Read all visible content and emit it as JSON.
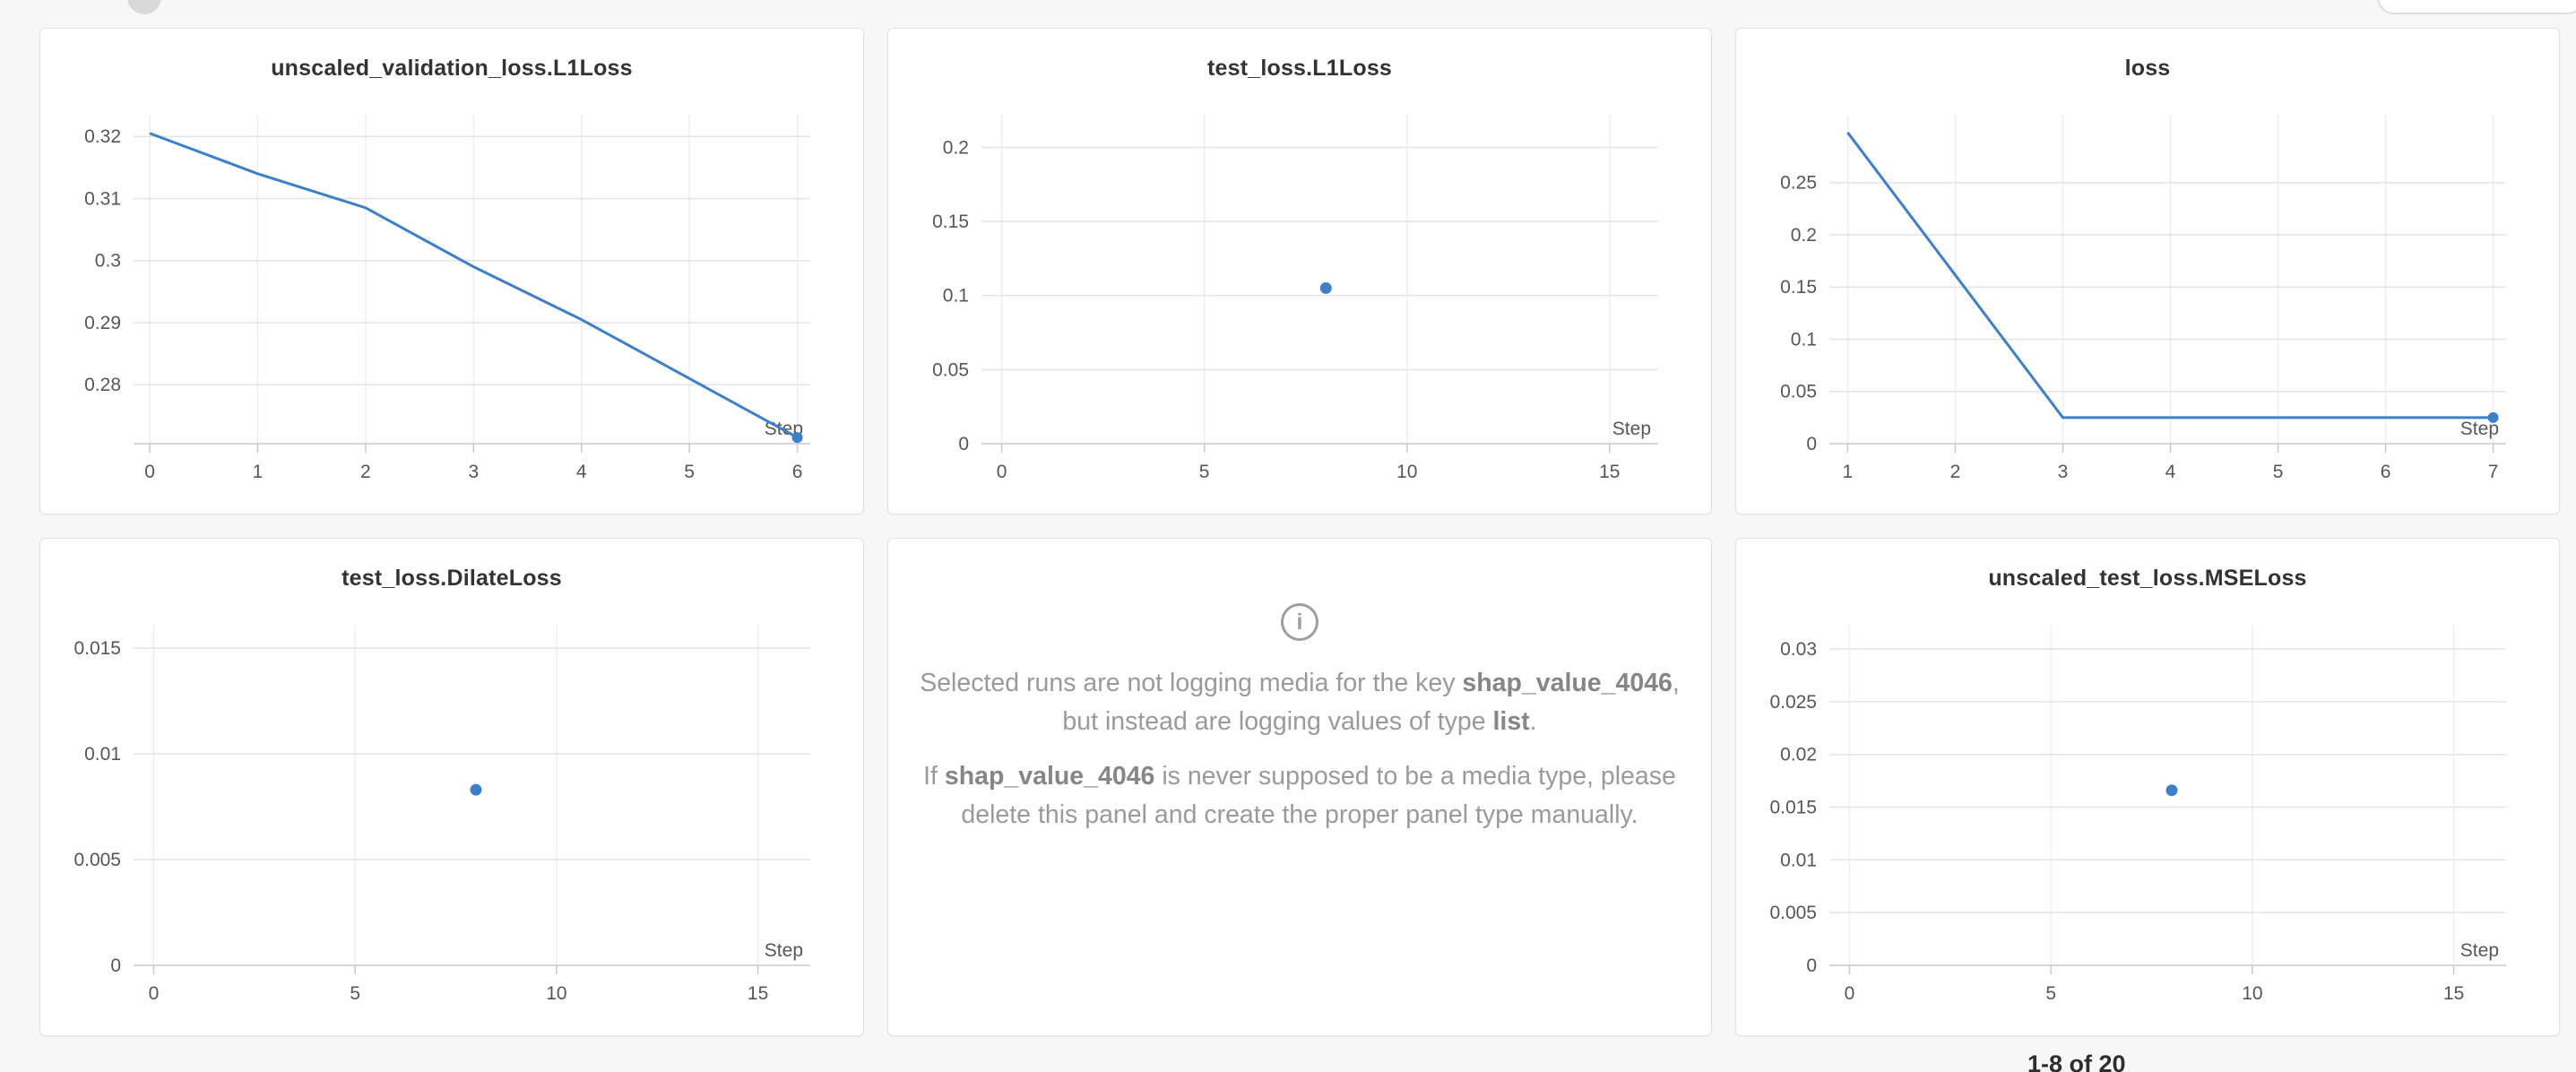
{
  "theme": {
    "accent": "#3e7fca",
    "page_bg": "#f7f7f7",
    "panel_bg": "#ffffff",
    "panel_border": "#e3e3e3",
    "grid_h": "#e4e4e4",
    "grid_v": "#efefef",
    "axis": "#c9c9c9",
    "tick": "#565656",
    "title": "#333333"
  },
  "pagination": {
    "label": "1-8 of 20"
  },
  "info_panel": {
    "icon_glyph": "i",
    "paragraphs": [
      [
        {
          "t": "Selected runs are not logging media for the key ",
          "b": false
        },
        {
          "t": "shap_value_4046",
          "b": true
        },
        {
          "t": ", but instead are logging values of type ",
          "b": false
        },
        {
          "t": "list",
          "b": true
        },
        {
          "t": ".",
          "b": false
        }
      ],
      [
        {
          "t": "If ",
          "b": false
        },
        {
          "t": "shap_value_4046",
          "b": true
        },
        {
          "t": " is never supposed to be a media type, please delete this panel and create the proper panel type manually.",
          "b": false
        }
      ]
    ]
  },
  "chart_data": [
    {
      "type": "line",
      "title": "unscaled_validation_loss.L1Loss",
      "xlabel": "Step",
      "x": [
        0,
        1,
        2,
        3,
        4,
        5,
        6
      ],
      "y": [
        0.3205,
        0.314,
        0.3085,
        0.299,
        0.2905,
        0.281,
        0.2715
      ],
      "xticks": [
        0,
        1,
        2,
        3,
        4,
        5,
        6
      ],
      "yticks": [
        0.28,
        0.29,
        0.3,
        0.31,
        0.32
      ],
      "xlim": [
        -0.15,
        6.12
      ],
      "ylim": [
        0.2705,
        0.3235
      ],
      "end_dot": true
    },
    {
      "type": "scatter",
      "title": "test_loss.L1Loss",
      "xlabel": "Step",
      "x": [
        8
      ],
      "y": [
        0.105
      ],
      "xticks": [
        0,
        5,
        10,
        15
      ],
      "yticks": [
        0,
        0.05,
        0.1,
        0.15,
        0.2
      ],
      "xlim": [
        -0.5,
        16.2
      ],
      "ylim": [
        0,
        0.222
      ],
      "end_dot": false
    },
    {
      "type": "line",
      "title": "loss",
      "xlabel": "Step",
      "x": [
        1,
        2,
        3,
        4,
        5,
        6,
        7
      ],
      "y": [
        0.298,
        0.1615,
        0.025,
        0.025,
        0.025,
        0.025,
        0.025
      ],
      "xticks": [
        1,
        2,
        3,
        4,
        5,
        6,
        7
      ],
      "yticks": [
        0,
        0.05,
        0.1,
        0.15,
        0.2,
        0.25
      ],
      "xlim": [
        0.83,
        7.12
      ],
      "ylim": [
        0,
        0.315
      ],
      "end_dot": true
    },
    {
      "type": "scatter",
      "title": "test_loss.DilateLoss",
      "xlabel": "Step",
      "x": [
        8
      ],
      "y": [
        0.0083
      ],
      "xticks": [
        0,
        5,
        10,
        15
      ],
      "yticks": [
        0,
        0.005,
        0.01,
        0.015
      ],
      "xlim": [
        -0.5,
        16.3
      ],
      "ylim": [
        0,
        0.0161
      ],
      "end_dot": false
    },
    {
      "type": "scatter",
      "title": "unscaled_test_loss.MSELoss",
      "xlabel": "Step",
      "x": [
        8
      ],
      "y": [
        0.0166
      ],
      "xticks": [
        0,
        5,
        10,
        15
      ],
      "yticks": [
        0,
        0.005,
        0.01,
        0.015,
        0.02,
        0.025,
        0.03
      ],
      "xlim": [
        -0.5,
        16.3
      ],
      "ylim": [
        0,
        0.0323
      ],
      "end_dot": false
    }
  ]
}
